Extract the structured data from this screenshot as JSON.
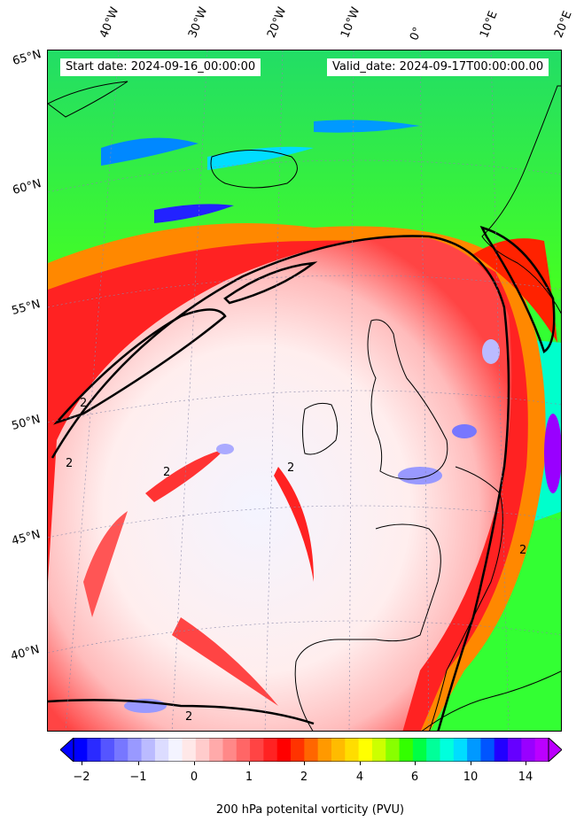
{
  "map": {
    "start_date": "Start date: 2024-09-16_00:00:00",
    "valid_date": "Valid_date: 2024-09-17T00:00:00.00",
    "contour_label": "2",
    "lon_labels": [
      "40°W",
      "30°W",
      "20°W",
      "10°W",
      "0°",
      "10°E",
      "20°E"
    ],
    "lat_labels": [
      "65°N",
      "60°N",
      "55°N",
      "50°N",
      "45°N",
      "40°N"
    ]
  },
  "colorbar": {
    "label": "200 hPa potenital vorticity (PVU)",
    "ticks": [
      "−2",
      "−1",
      "0",
      "1",
      "2",
      "4",
      "6",
      "10",
      "14"
    ],
    "colors": [
      "#0000ff",
      "#2a2aff",
      "#5555ff",
      "#7777ff",
      "#9999ff",
      "#bbbbff",
      "#dcdcff",
      "#f4f4ff",
      "#ffe8e8",
      "#ffcccc",
      "#ffaaaa",
      "#ff8888",
      "#ff6666",
      "#ff4444",
      "#ff2222",
      "#ff0000",
      "#ff3300",
      "#ff6600",
      "#ff9900",
      "#ffbb00",
      "#ffdd00",
      "#ffff00",
      "#ccff00",
      "#88ff00",
      "#33ff00",
      "#00ff44",
      "#00ff99",
      "#00ffdd",
      "#00ddff",
      "#0099ff",
      "#0055ff",
      "#2200ff",
      "#6600ff",
      "#9900ff",
      "#bb00ff"
    ]
  }
}
